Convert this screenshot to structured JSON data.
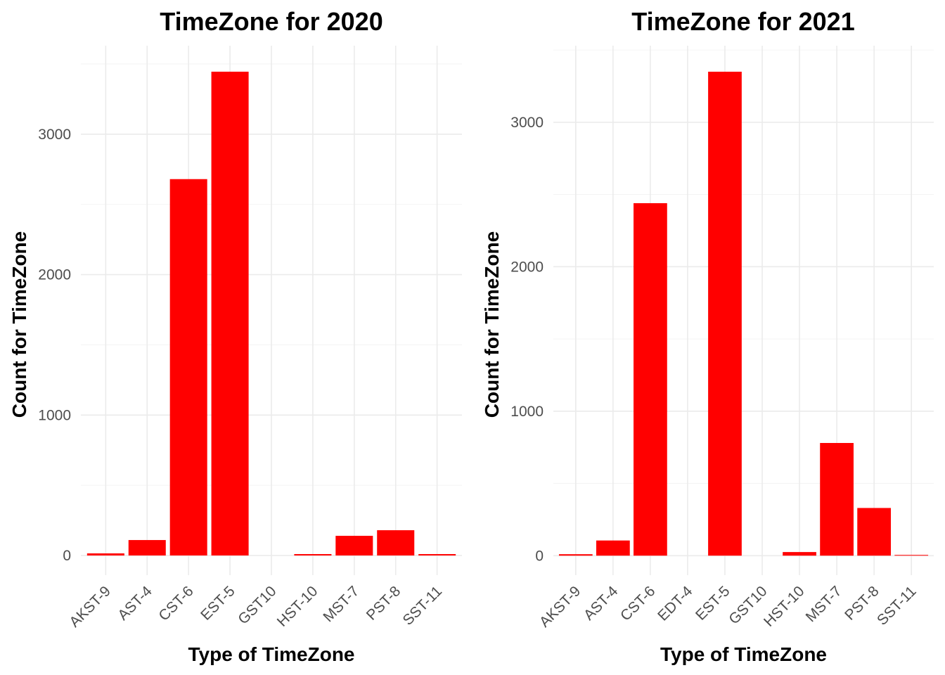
{
  "chart_data": [
    {
      "type": "bar",
      "title": "TimeZone for 2020",
      "xlabel": "Type of TimeZone",
      "ylabel": "Count for TimeZone",
      "categories": [
        "AKST-9",
        "AST-4",
        "CST-6",
        "EST-5",
        "GST10",
        "HST-10",
        "MST-7",
        "PST-8",
        "SST-11"
      ],
      "values": [
        15,
        110,
        2680,
        3445,
        0,
        10,
        140,
        180,
        10
      ],
      "ylim": [
        -140,
        3630
      ],
      "yticks": [
        0,
        1000,
        2000,
        3000
      ],
      "ytick_labels": [
        "0",
        "1000",
        "2000",
        "3000"
      ],
      "grid": true,
      "bar_color": "#FF0000"
    },
    {
      "type": "bar",
      "title": "TimeZone for 2021",
      "xlabel": "Type of TimeZone",
      "ylabel": "Count for TimeZone",
      "categories": [
        "AKST-9",
        "AST-4",
        "CST-6",
        "EDT-4",
        "EST-5",
        "GST10",
        "HST-10",
        "MST-7",
        "PST-8",
        "SST-11"
      ],
      "values": [
        10,
        105,
        2440,
        0,
        3350,
        0,
        25,
        780,
        330,
        5
      ],
      "ylim": [
        -135,
        3530
      ],
      "yticks": [
        0,
        1000,
        2000,
        3000
      ],
      "ytick_labels": [
        "0",
        "1000",
        "2000",
        "3000"
      ],
      "grid": true,
      "bar_color": "#FF0000"
    }
  ]
}
